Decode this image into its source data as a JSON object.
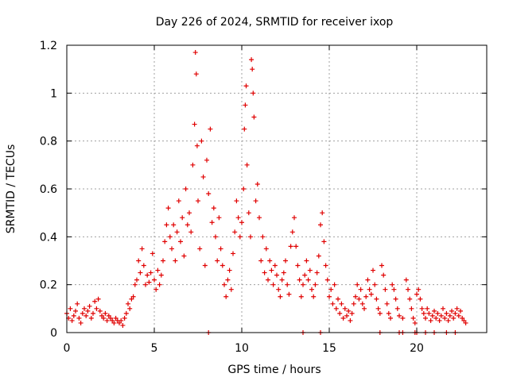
{
  "chart_data": {
    "type": "scatter",
    "title": "Day 226 of 2024, SRMTID for receiver ixop",
    "xlabel": "GPS time / hours",
    "ylabel": "SRMTID / TECUs",
    "xlim": [
      0,
      24
    ],
    "ylim": [
      0,
      1.2
    ],
    "x_ticks": [
      0,
      5,
      10,
      15,
      20
    ],
    "x_tick_labels": [
      "0",
      "5",
      "10",
      "15",
      "20"
    ],
    "y_ticks": [
      0,
      0.2,
      0.4,
      0.6,
      0.8,
      1.0,
      1.2
    ],
    "y_tick_labels": [
      "0",
      "0.2",
      "0.4",
      "0.6",
      "0.8",
      "1",
      "1.2"
    ],
    "grid": true,
    "marker": "+",
    "color": "#e00000",
    "series": [
      {
        "name": "SRMTID",
        "points": [
          [
            0.0,
            0.08
          ],
          [
            0.1,
            0.06
          ],
          [
            0.2,
            0.1
          ],
          [
            0.3,
            0.05
          ],
          [
            0.4,
            0.07
          ],
          [
            0.5,
            0.09
          ],
          [
            0.6,
            0.12
          ],
          [
            0.7,
            0.06
          ],
          [
            0.8,
            0.04
          ],
          [
            0.9,
            0.08
          ],
          [
            1.0,
            0.1
          ],
          [
            1.1,
            0.07
          ],
          [
            1.2,
            0.09
          ],
          [
            1.3,
            0.11
          ],
          [
            1.4,
            0.06
          ],
          [
            1.5,
            0.08
          ],
          [
            1.6,
            0.13
          ],
          [
            1.7,
            0.1
          ],
          [
            1.8,
            0.14
          ],
          [
            1.9,
            0.09
          ],
          [
            2.0,
            0.07
          ],
          [
            2.1,
            0.06
          ],
          [
            2.2,
            0.08
          ],
          [
            2.3,
            0.05
          ],
          [
            2.4,
            0.07
          ],
          [
            2.5,
            0.06
          ],
          [
            2.6,
            0.05
          ],
          [
            2.7,
            0.04
          ],
          [
            2.8,
            0.06
          ],
          [
            2.9,
            0.05
          ],
          [
            3.0,
            0.04
          ],
          [
            3.1,
            0.05
          ],
          [
            3.2,
            0.03
          ],
          [
            3.3,
            0.06
          ],
          [
            3.4,
            0.08
          ],
          [
            3.5,
            0.12
          ],
          [
            3.6,
            0.1
          ],
          [
            3.7,
            0.14
          ],
          [
            3.8,
            0.15
          ],
          [
            3.9,
            0.2
          ],
          [
            4.0,
            0.22
          ],
          [
            4.1,
            0.3
          ],
          [
            4.2,
            0.25
          ],
          [
            4.3,
            0.35
          ],
          [
            4.4,
            0.28
          ],
          [
            4.5,
            0.2
          ],
          [
            4.6,
            0.24
          ],
          [
            4.7,
            0.21
          ],
          [
            4.8,
            0.25
          ],
          [
            4.9,
            0.33
          ],
          [
            5.0,
            0.22
          ],
          [
            5.1,
            0.18
          ],
          [
            5.2,
            0.26
          ],
          [
            5.3,
            0.2
          ],
          [
            5.4,
            0.24
          ],
          [
            5.5,
            0.3
          ],
          [
            5.6,
            0.38
          ],
          [
            5.7,
            0.45
          ],
          [
            5.8,
            0.52
          ],
          [
            5.9,
            0.4
          ],
          [
            6.0,
            0.35
          ],
          [
            6.1,
            0.45
          ],
          [
            6.2,
            0.3
          ],
          [
            6.3,
            0.42
          ],
          [
            6.4,
            0.55
          ],
          [
            6.5,
            0.38
          ],
          [
            6.6,
            0.48
          ],
          [
            6.7,
            0.32
          ],
          [
            6.8,
            0.6
          ],
          [
            6.9,
            0.45
          ],
          [
            7.0,
            0.5
          ],
          [
            7.1,
            0.42
          ],
          [
            7.2,
            0.7
          ],
          [
            7.3,
            0.87
          ],
          [
            7.35,
            1.17
          ],
          [
            7.4,
            1.08
          ],
          [
            7.45,
            0.78
          ],
          [
            7.5,
            0.55
          ],
          [
            7.6,
            0.35
          ],
          [
            7.7,
            0.8
          ],
          [
            7.8,
            0.65
          ],
          [
            7.9,
            0.28
          ],
          [
            8.0,
            0.72
          ],
          [
            8.1,
            0.58
          ],
          [
            8.2,
            0.85
          ],
          [
            8.3,
            0.46
          ],
          [
            8.4,
            0.52
          ],
          [
            8.5,
            0.4
          ],
          [
            8.6,
            0.3
          ],
          [
            8.7,
            0.48
          ],
          [
            8.8,
            0.35
          ],
          [
            8.9,
            0.28
          ],
          [
            9.0,
            0.2
          ],
          [
            9.1,
            0.15
          ],
          [
            9.2,
            0.22
          ],
          [
            9.3,
            0.26
          ],
          [
            9.4,
            0.18
          ],
          [
            9.5,
            0.33
          ],
          [
            9.6,
            0.42
          ],
          [
            9.7,
            0.55
          ],
          [
            9.8,
            0.48
          ],
          [
            9.9,
            0.4
          ],
          [
            10.0,
            0.46
          ],
          [
            10.1,
            0.6
          ],
          [
            10.15,
            0.85
          ],
          [
            10.2,
            0.95
          ],
          [
            10.25,
            1.03
          ],
          [
            10.3,
            0.7
          ],
          [
            10.4,
            0.5
          ],
          [
            10.5,
            0.4
          ],
          [
            10.55,
            1.14
          ],
          [
            10.6,
            1.1
          ],
          [
            10.65,
            1.0
          ],
          [
            10.7,
            0.9
          ],
          [
            10.8,
            0.55
          ],
          [
            10.9,
            0.62
          ],
          [
            11.0,
            0.48
          ],
          [
            11.1,
            0.3
          ],
          [
            11.2,
            0.4
          ],
          [
            11.3,
            0.25
          ],
          [
            11.4,
            0.35
          ],
          [
            11.5,
            0.22
          ],
          [
            11.6,
            0.3
          ],
          [
            11.7,
            0.26
          ],
          [
            11.8,
            0.2
          ],
          [
            11.9,
            0.28
          ],
          [
            12.0,
            0.24
          ],
          [
            12.1,
            0.18
          ],
          [
            12.2,
            0.15
          ],
          [
            12.3,
            0.22
          ],
          [
            12.4,
            0.25
          ],
          [
            12.5,
            0.3
          ],
          [
            12.6,
            0.2
          ],
          [
            12.7,
            0.16
          ],
          [
            12.8,
            0.36
          ],
          [
            12.9,
            0.42
          ],
          [
            13.0,
            0.48
          ],
          [
            13.1,
            0.36
          ],
          [
            13.2,
            0.28
          ],
          [
            13.3,
            0.22
          ],
          [
            13.4,
            0.15
          ],
          [
            13.5,
            0.2
          ],
          [
            13.6,
            0.24
          ],
          [
            13.7,
            0.3
          ],
          [
            13.8,
            0.22
          ],
          [
            13.9,
            0.26
          ],
          [
            14.0,
            0.18
          ],
          [
            14.1,
            0.15
          ],
          [
            14.2,
            0.2
          ],
          [
            14.3,
            0.25
          ],
          [
            14.4,
            0.32
          ],
          [
            14.5,
            0.45
          ],
          [
            14.6,
            0.5
          ],
          [
            14.7,
            0.38
          ],
          [
            14.8,
            0.28
          ],
          [
            14.9,
            0.22
          ],
          [
            15.0,
            0.15
          ],
          [
            15.1,
            0.18
          ],
          [
            15.2,
            0.12
          ],
          [
            15.3,
            0.2
          ],
          [
            15.4,
            0.1
          ],
          [
            15.5,
            0.14
          ],
          [
            15.6,
            0.08
          ],
          [
            15.7,
            0.12
          ],
          [
            15.8,
            0.06
          ],
          [
            15.9,
            0.1
          ],
          [
            16.0,
            0.07
          ],
          [
            16.1,
            0.09
          ],
          [
            16.2,
            0.05
          ],
          [
            16.3,
            0.08
          ],
          [
            16.4,
            0.12
          ],
          [
            16.5,
            0.15
          ],
          [
            16.6,
            0.2
          ],
          [
            16.7,
            0.14
          ],
          [
            16.8,
            0.18
          ],
          [
            16.9,
            0.12
          ],
          [
            17.0,
            0.1
          ],
          [
            17.1,
            0.15
          ],
          [
            17.2,
            0.22
          ],
          [
            17.3,
            0.18
          ],
          [
            17.4,
            0.16
          ],
          [
            17.5,
            0.26
          ],
          [
            17.6,
            0.2
          ],
          [
            17.7,
            0.14
          ],
          [
            17.8,
            0.1
          ],
          [
            17.9,
            0.08
          ],
          [
            18.0,
            0.28
          ],
          [
            18.1,
            0.24
          ],
          [
            18.2,
            0.18
          ],
          [
            18.3,
            0.12
          ],
          [
            18.4,
            0.08
          ],
          [
            18.5,
            0.06
          ],
          [
            18.6,
            0.2
          ],
          [
            18.7,
            0.18
          ],
          [
            18.8,
            0.14
          ],
          [
            18.9,
            0.1
          ],
          [
            19.0,
            0.07
          ],
          [
            19.2,
            0.06
          ],
          [
            19.4,
            0.22
          ],
          [
            19.5,
            0.18
          ],
          [
            19.6,
            0.14
          ],
          [
            19.7,
            0.1
          ],
          [
            19.8,
            0.06
          ],
          [
            19.9,
            0.04
          ],
          [
            20.0,
            0.16
          ],
          [
            20.1,
            0.18
          ],
          [
            20.2,
            0.14
          ],
          [
            20.3,
            0.1
          ],
          [
            20.4,
            0.08
          ],
          [
            20.5,
            0.06
          ],
          [
            20.6,
            0.1
          ],
          [
            20.7,
            0.08
          ],
          [
            20.8,
            0.05
          ],
          [
            20.9,
            0.07
          ],
          [
            21.0,
            0.09
          ],
          [
            21.1,
            0.06
          ],
          [
            21.2,
            0.08
          ],
          [
            21.3,
            0.05
          ],
          [
            21.4,
            0.07
          ],
          [
            21.5,
            0.1
          ],
          [
            21.6,
            0.06
          ],
          [
            21.7,
            0.08
          ],
          [
            21.8,
            0.05
          ],
          [
            21.9,
            0.07
          ],
          [
            22.0,
            0.09
          ],
          [
            22.1,
            0.06
          ],
          [
            22.2,
            0.08
          ],
          [
            22.3,
            0.1
          ],
          [
            22.4,
            0.07
          ],
          [
            22.5,
            0.09
          ],
          [
            22.6,
            0.06
          ],
          [
            22.7,
            0.05
          ],
          [
            22.8,
            0.04
          ],
          [
            8.1,
            0.0
          ],
          [
            13.5,
            0.0
          ],
          [
            14.5,
            0.0
          ],
          [
            17.9,
            0.0
          ],
          [
            19.0,
            0.0
          ],
          [
            19.2,
            0.0
          ],
          [
            19.9,
            0.0
          ],
          [
            20.0,
            0.0
          ],
          [
            20.5,
            0.0
          ],
          [
            21.0,
            0.0
          ],
          [
            21.7,
            0.0
          ],
          [
            22.2,
            0.0
          ]
        ]
      }
    ]
  }
}
